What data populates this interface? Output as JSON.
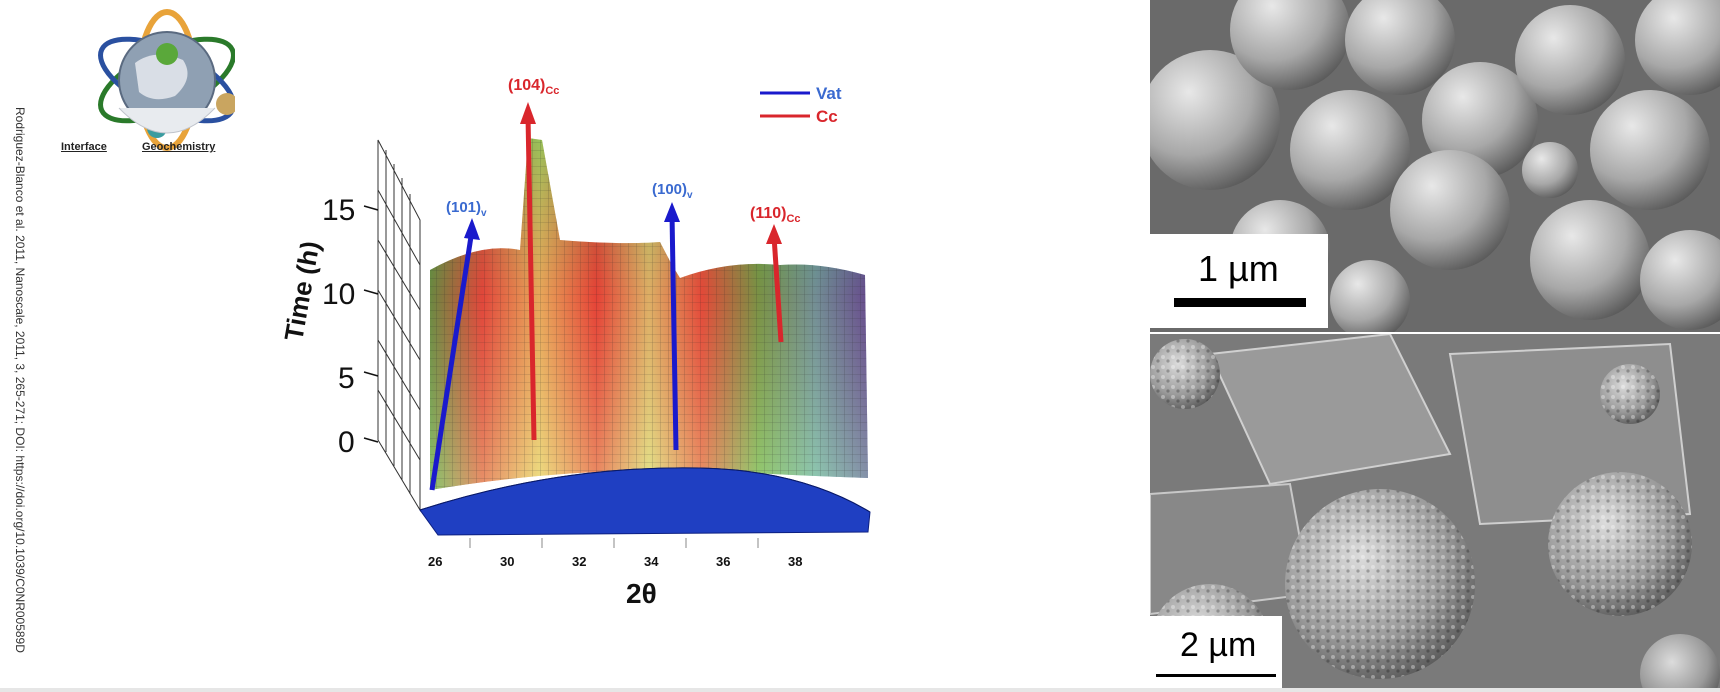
{
  "citation": "Rodriguez-Blanco et al. 2011, Nanoscale, 2011, 3, 265-271; DOI: https://doi.org/10.1039/C0NR00589D",
  "logo": {
    "left_word": "Interface",
    "right_word": "Geochemistry",
    "icon": "globe-orbit-logo"
  },
  "chart_data": {
    "type": "surface",
    "xlabel": "2θ",
    "ylabel": "Time (h)",
    "x_ticks": [
      "26",
      "30",
      "32",
      "34",
      "36",
      "38"
    ],
    "y_ticks": [
      "0",
      "5",
      "10",
      "15"
    ],
    "legend": [
      {
        "name": "Vat",
        "color": "#1a1acc"
      },
      {
        "name": "Cc",
        "color": "#d9262c"
      }
    ],
    "legend_position": "top-right",
    "peaks": [
      {
        "label": "(101)",
        "phase": "v",
        "two_theta": 27.3,
        "series": "Vat"
      },
      {
        "label": "(104)",
        "phase": "Cc",
        "two_theta": 29.4,
        "series": "Cc"
      },
      {
        "label": "(100)",
        "phase": "v",
        "two_theta": 34.7,
        "series": "Vat"
      },
      {
        "label": "(110)",
        "phase": "Cc",
        "two_theta": 36.0,
        "series": "Cc"
      }
    ]
  },
  "sem_images": [
    {
      "scale_label": "1 µm",
      "description_icon": "sem-spheres-top"
    },
    {
      "scale_label": "2 µm",
      "description_icon": "sem-spheres-bottom"
    }
  ]
}
